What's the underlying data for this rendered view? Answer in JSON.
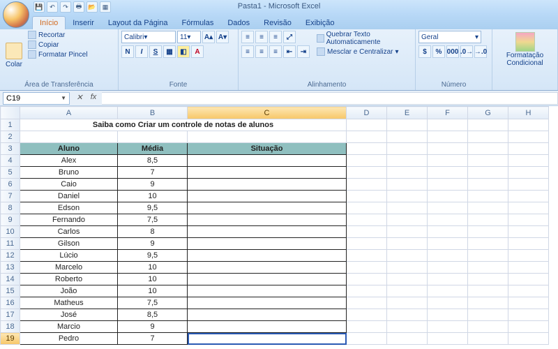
{
  "window": {
    "title": "Pasta1 - Microsoft Excel"
  },
  "qat": {
    "icons": [
      "save",
      "undo",
      "redo",
      "print",
      "open",
      "new"
    ]
  },
  "tabs": {
    "items": [
      "Início",
      "Inserir",
      "Layout da Página",
      "Fórmulas",
      "Dados",
      "Revisão",
      "Exibição"
    ],
    "active": 0
  },
  "ribbon": {
    "clipboard": {
      "label": "Área de Transferência",
      "paste": "Colar",
      "cut": "Recortar",
      "copy": "Copiar",
      "format_painter": "Formatar Pincel"
    },
    "font": {
      "label": "Fonte",
      "name": "Calibri",
      "size": "11"
    },
    "alignment": {
      "label": "Alinhamento",
      "wrap": "Quebrar Texto Automaticamente",
      "merge": "Mesclar e Centralizar"
    },
    "number": {
      "label": "Número",
      "format": "Geral"
    },
    "styles": {
      "conditional": "Formatação Condicional"
    }
  },
  "namebox": {
    "ref": "C19"
  },
  "fx_label": "fx",
  "sheet": {
    "title": "Saiba como Criar um controle de notas de alunos",
    "headers": {
      "aluno": "Aluno",
      "media": "Média",
      "situacao": "Situação"
    },
    "header_bg": "#8fbfbf",
    "rows": [
      {
        "n": 4,
        "aluno": "Alex",
        "media": "8,5"
      },
      {
        "n": 5,
        "aluno": "Bruno",
        "media": "7"
      },
      {
        "n": 6,
        "aluno": "Caio",
        "media": "9"
      },
      {
        "n": 7,
        "aluno": "Daniel",
        "media": "10"
      },
      {
        "n": 8,
        "aluno": "Edson",
        "media": "9,5"
      },
      {
        "n": 9,
        "aluno": "Fernando",
        "media": "7,5"
      },
      {
        "n": 10,
        "aluno": "Carlos",
        "media": "8"
      },
      {
        "n": 11,
        "aluno": "Gilson",
        "media": "9"
      },
      {
        "n": 12,
        "aluno": "Lúcio",
        "media": "9,5"
      },
      {
        "n": 13,
        "aluno": "Marcelo",
        "media": "10"
      },
      {
        "n": 14,
        "aluno": "Roberto",
        "media": "10"
      },
      {
        "n": 15,
        "aluno": "João",
        "media": "10"
      },
      {
        "n": 16,
        "aluno": "Matheus",
        "media": "7,5"
      },
      {
        "n": 17,
        "aluno": "José",
        "media": "8,5"
      },
      {
        "n": 18,
        "aluno": "Marcio",
        "media": "9"
      },
      {
        "n": 19,
        "aluno": "Pedro",
        "media": "7"
      }
    ],
    "columns": [
      "A",
      "B",
      "C",
      "D",
      "E",
      "F",
      "G",
      "H"
    ],
    "active_cell": {
      "row": 19,
      "col": "C"
    }
  }
}
